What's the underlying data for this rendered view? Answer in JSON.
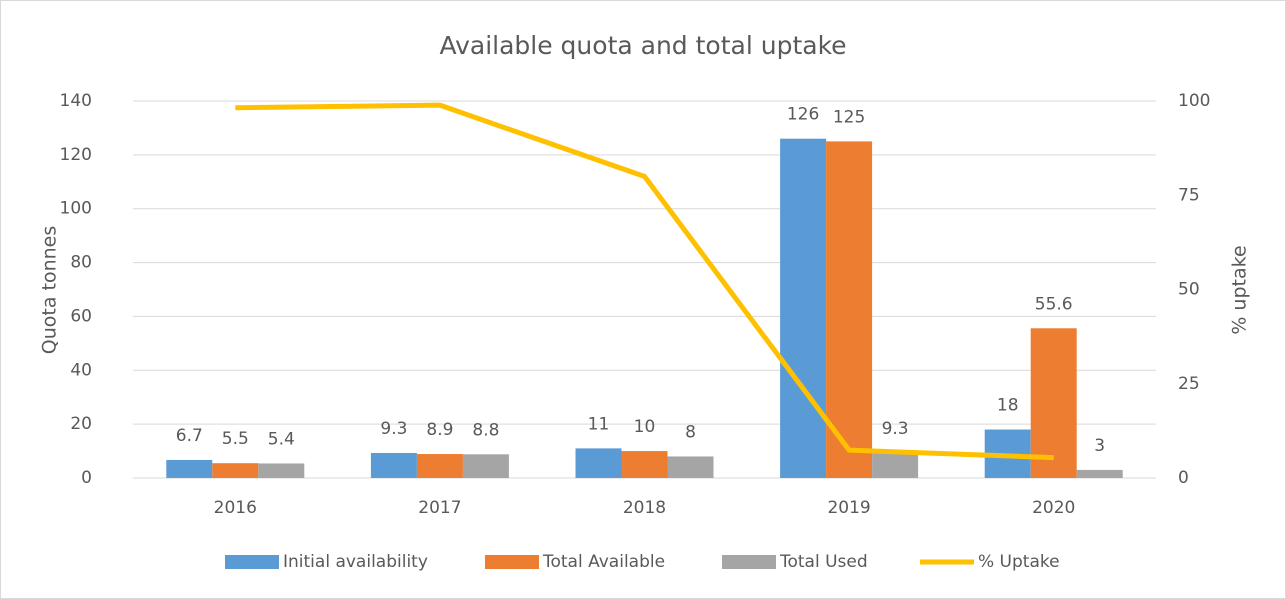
{
  "chart_data": {
    "type": "bar",
    "title": "Available quota and total uptake",
    "y_label": "Quota tonnes",
    "y2_label": "% uptake",
    "categories": [
      "2016",
      "2017",
      "2018",
      "2019",
      "2020"
    ],
    "series": [
      {
        "name": "Initial availability",
        "type": "bar",
        "color": "#5b9bd5",
        "values": [
          6.7,
          9.3,
          11,
          126,
          18
        ]
      },
      {
        "name": "Total Available",
        "type": "bar",
        "color": "#ed7d31",
        "values": [
          5.5,
          8.9,
          10,
          125,
          55.6
        ]
      },
      {
        "name": "Total Used",
        "type": "bar",
        "color": "#a5a5a5",
        "values": [
          5.4,
          8.8,
          8,
          9.3,
          3
        ]
      },
      {
        "name": "% Uptake",
        "type": "line",
        "axis": "y2",
        "color": "#ffc000",
        "values": [
          98.2,
          98.9,
          80,
          7.4,
          5.4
        ]
      }
    ],
    "ylim": [
      0,
      140
    ],
    "yticks": [
      0,
      20,
      40,
      60,
      80,
      100,
      120,
      140
    ],
    "y2lim": [
      0,
      100
    ],
    "y2ticks": [
      0,
      25,
      50,
      75,
      100
    ],
    "grid": true,
    "legend": "bottom",
    "data_labels": [
      "Initial availability",
      "Total Available",
      "Total Used"
    ]
  }
}
